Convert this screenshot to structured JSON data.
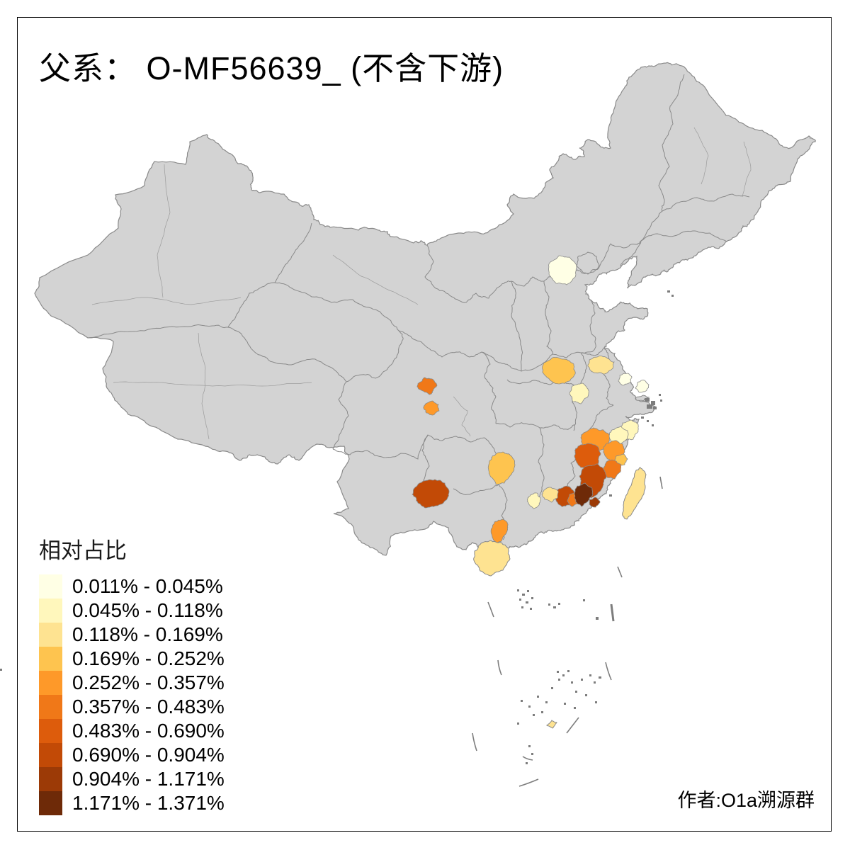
{
  "title": "父系： O-MF56639_ (不含下游)",
  "author": "作者:O1a溯源群",
  "legend": {
    "title": "相对占比",
    "items": [
      {
        "label": "0.011% - 0.045%",
        "color": "#FFFFE5"
      },
      {
        "label": "0.045% - 0.118%",
        "color": "#FFF7BC"
      },
      {
        "label": "0.118% - 0.169%",
        "color": "#FEE391"
      },
      {
        "label": "0.169% - 0.252%",
        "color": "#FEC44F"
      },
      {
        "label": "0.252% - 0.357%",
        "color": "#FE9929"
      },
      {
        "label": "0.357% - 0.483%",
        "color": "#F07818"
      },
      {
        "label": "0.483% - 0.690%",
        "color": "#DD5C0C"
      },
      {
        "label": "0.690% - 0.904%",
        "color": "#C24A06"
      },
      {
        "label": "0.904% - 1.171%",
        "color": "#9C3A06"
      },
      {
        "label": "1.171% - 1.371%",
        "color": "#6E2A08"
      }
    ]
  },
  "map": {
    "land_color": "#D3D3D3",
    "boundary_color": "#8A8A8A",
    "background": "#FFFFFF"
  },
  "chart_data": {
    "type": "heatmap",
    "title": "父系： O-MF56639_ (不含下游)",
    "legend_title": "相对占比",
    "legend_position": "bottom-left",
    "bins": [
      "0.011% - 0.045%",
      "0.045% - 0.118%",
      "0.118% - 0.169%",
      "0.169% - 0.252%",
      "0.252% - 0.357%",
      "0.357% - 0.483%",
      "0.483% - 0.690%",
      "0.690% - 0.904%",
      "0.904% - 1.171%",
      "1.171% - 1.371%"
    ],
    "bin_colors": [
      "#FFFFE5",
      "#FFF7BC",
      "#FEE391",
      "#FEC44F",
      "#FE9929",
      "#F07818",
      "#DD5C0C",
      "#C24A06",
      "#9C3A06",
      "#6E2A08"
    ],
    "regions_by_bin": {
      "bin1": [
        "hebei-central",
        "jiangsu-yangzhou",
        "jiangsu-nantong"
      ],
      "bin2": [
        "anhui-hefei",
        "zhejiang-south-coast",
        "fujian-ningde",
        "guangdong-north-small"
      ],
      "bin3": [
        "anhui-northeast",
        "guangdong-east-small",
        "hainan-island",
        "taiwan-island",
        "south-sea-islet"
      ],
      "bin4": [
        "anhui-fuyang",
        "fujian-putian",
        "guangxi-central"
      ],
      "bin5": [
        "sichuan-south",
        "fujian-nanping",
        "fujian-fuzhou",
        "guangdong-leizhou"
      ],
      "bin6": [
        "sichuan-chengdu",
        "fujian-quanzhou",
        "guangdong-shantou"
      ],
      "bin7": [
        "fujian-sanming"
      ],
      "bin8": [
        "fujian-longyan-zhangzhou",
        "guangdong-meizhou",
        "yunnan-southeast"
      ],
      "bin9": [
        "guangdong-coast-east"
      ],
      "bin10": [
        "guangdong-chaoshan"
      ]
    },
    "annotations": [
      "作者:O1a溯源群"
    ]
  }
}
